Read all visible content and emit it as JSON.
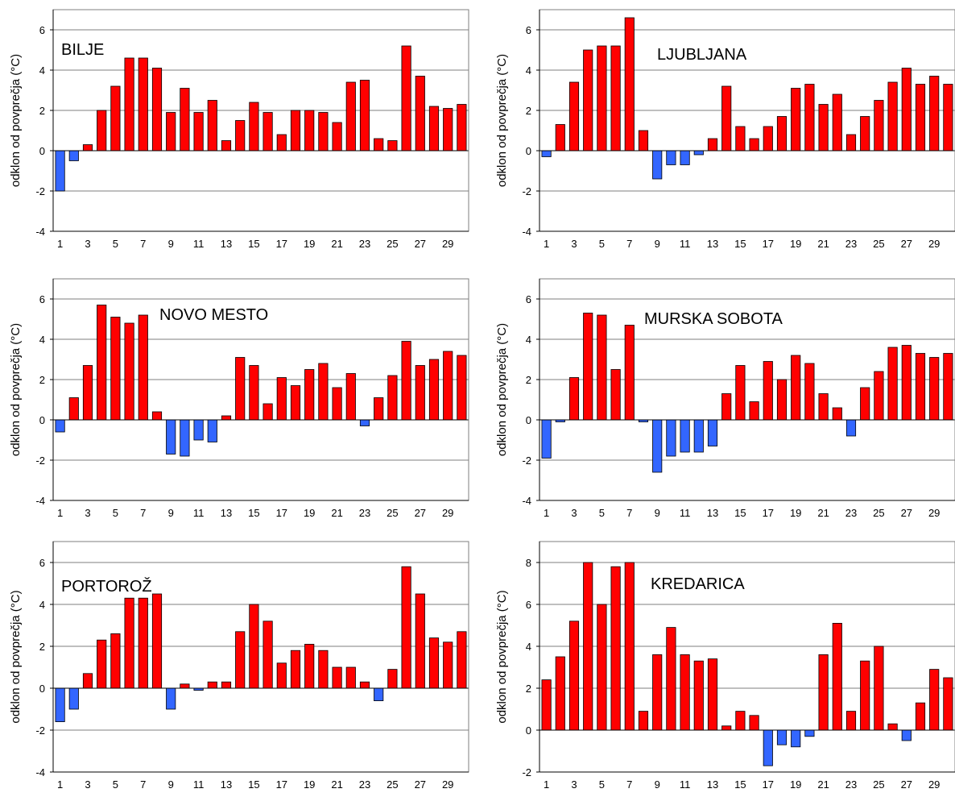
{
  "colors": {
    "positive": "#ff0000",
    "negative": "#3366ff",
    "outline": "#000000",
    "grid": "#7f7f7f",
    "background": "#ffffff"
  },
  "chart_data": [
    {
      "type": "bar",
      "title": "BILJE",
      "ylabel": "odklon od povprečja (°C)",
      "ylim": [
        -4,
        7
      ],
      "yticks": [
        -4,
        -2,
        0,
        2,
        4,
        6
      ],
      "x": [
        1,
        2,
        3,
        4,
        5,
        6,
        7,
        8,
        9,
        10,
        11,
        12,
        13,
        14,
        15,
        16,
        17,
        18,
        19,
        20,
        21,
        22,
        23,
        24,
        25,
        26,
        27,
        28,
        29,
        30
      ],
      "xtick_labels": [
        "1",
        "3",
        "5",
        "7",
        "9",
        "11",
        "13",
        "15",
        "17",
        "19",
        "21",
        "23",
        "25",
        "27",
        "29"
      ],
      "values": [
        -2.0,
        -0.5,
        0.3,
        2.0,
        3.2,
        4.6,
        4.6,
        4.1,
        1.9,
        3.1,
        1.9,
        2.5,
        0.5,
        1.5,
        2.4,
        1.9,
        0.8,
        2.0,
        2.0,
        1.9,
        1.4,
        3.4,
        3.5,
        0.6,
        0.5,
        5.2,
        3.7,
        2.2,
        2.1,
        2.3
      ],
      "grid": true
    },
    {
      "type": "bar",
      "title": "LJUBLJANA",
      "ylabel": "odklon od povprečja (°C)",
      "ylim": [
        -4,
        7
      ],
      "yticks": [
        -4,
        -2,
        0,
        2,
        4,
        6
      ],
      "x": [
        1,
        2,
        3,
        4,
        5,
        6,
        7,
        8,
        9,
        10,
        11,
        12,
        13,
        14,
        15,
        16,
        17,
        18,
        19,
        20,
        21,
        22,
        23,
        24,
        25,
        26,
        27,
        28,
        29,
        30
      ],
      "xtick_labels": [
        "1",
        "3",
        "5",
        "7",
        "9",
        "11",
        "13",
        "15",
        "17",
        "19",
        "21",
        "23",
        "25",
        "27",
        "29"
      ],
      "values": [
        -0.3,
        1.3,
        3.4,
        5.0,
        5.2,
        5.2,
        6.6,
        1.0,
        -1.4,
        -0.7,
        -0.7,
        -0.2,
        0.6,
        3.2,
        1.2,
        0.6,
        1.2,
        1.7,
        3.1,
        3.3,
        2.3,
        2.8,
        0.8,
        1.7,
        2.5,
        3.4,
        4.1,
        3.3,
        3.7,
        3.3
      ],
      "grid": true
    },
    {
      "type": "bar",
      "title": "NOVO MESTO",
      "ylabel": "odklon od povprečja (°C)",
      "ylim": [
        -4,
        7
      ],
      "yticks": [
        -4,
        -2,
        0,
        2,
        4,
        6
      ],
      "x": [
        1,
        2,
        3,
        4,
        5,
        6,
        7,
        8,
        9,
        10,
        11,
        12,
        13,
        14,
        15,
        16,
        17,
        18,
        19,
        20,
        21,
        22,
        23,
        24,
        25,
        26,
        27,
        28,
        29,
        30
      ],
      "xtick_labels": [
        "1",
        "3",
        "5",
        "7",
        "9",
        "11",
        "13",
        "15",
        "17",
        "19",
        "21",
        "23",
        "25",
        "27",
        "29"
      ],
      "values": [
        -0.6,
        1.1,
        2.7,
        5.7,
        5.1,
        4.8,
        5.2,
        0.4,
        -1.7,
        -1.8,
        -1.0,
        -1.1,
        0.2,
        3.1,
        2.7,
        0.8,
        2.1,
        1.7,
        2.5,
        2.8,
        1.6,
        2.3,
        -0.3,
        1.1,
        2.2,
        3.9,
        2.7,
        3.0,
        3.4,
        3.2
      ],
      "grid": true
    },
    {
      "type": "bar",
      "title": "MURSKA SOBOTA",
      "ylabel": "odklon od povprečja (°C)",
      "ylim": [
        -4,
        7
      ],
      "yticks": [
        -4,
        -2,
        0,
        2,
        4,
        6
      ],
      "x": [
        1,
        2,
        3,
        4,
        5,
        6,
        7,
        8,
        9,
        10,
        11,
        12,
        13,
        14,
        15,
        16,
        17,
        18,
        19,
        20,
        21,
        22,
        23,
        24,
        25,
        26,
        27,
        28,
        29,
        30
      ],
      "xtick_labels": [
        "1",
        "3",
        "5",
        "7",
        "9",
        "11",
        "13",
        "15",
        "17",
        "19",
        "21",
        "23",
        "25",
        "27",
        "29"
      ],
      "values": [
        -1.9,
        -0.1,
        2.1,
        5.3,
        5.2,
        2.5,
        4.7,
        -0.1,
        -2.6,
        -1.8,
        -1.6,
        -1.6,
        -1.3,
        1.3,
        2.7,
        0.9,
        2.9,
        2.0,
        3.2,
        2.8,
        1.3,
        0.6,
        -0.8,
        1.6,
        2.4,
        3.6,
        3.7,
        3.3,
        3.1,
        3.3
      ],
      "grid": true
    },
    {
      "type": "bar",
      "title": "PORTOROŽ",
      "ylabel": "odklon od povprečja (°C)",
      "ylim": [
        -4,
        7
      ],
      "yticks": [
        -4,
        -2,
        0,
        2,
        4,
        6
      ],
      "x": [
        1,
        2,
        3,
        4,
        5,
        6,
        7,
        8,
        9,
        10,
        11,
        12,
        13,
        14,
        15,
        16,
        17,
        18,
        19,
        20,
        21,
        22,
        23,
        24,
        25,
        26,
        27,
        28,
        29,
        30
      ],
      "xtick_labels": [
        "1",
        "3",
        "5",
        "7",
        "9",
        "11",
        "13",
        "15",
        "17",
        "19",
        "21",
        "23",
        "25",
        "27",
        "29"
      ],
      "values": [
        -1.6,
        -1.0,
        0.7,
        2.3,
        2.6,
        4.3,
        4.3,
        4.5,
        -1.0,
        0.2,
        -0.1,
        0.3,
        0.3,
        2.7,
        4.0,
        3.2,
        1.2,
        1.8,
        2.1,
        1.8,
        1.0,
        1.0,
        0.3,
        -0.6,
        0.9,
        5.8,
        4.5,
        2.4,
        2.2,
        2.7
      ],
      "grid": true
    },
    {
      "type": "bar",
      "title": "KREDARICA",
      "ylabel": "odklon od povprečja (°C)",
      "ylim": [
        -2,
        9
      ],
      "yticks": [
        -2,
        0,
        2,
        4,
        6,
        8
      ],
      "x": [
        1,
        2,
        3,
        4,
        5,
        6,
        7,
        8,
        9,
        10,
        11,
        12,
        13,
        14,
        15,
        16,
        17,
        18,
        19,
        20,
        21,
        22,
        23,
        24,
        25,
        26,
        27,
        28,
        29,
        30
      ],
      "xtick_labels": [
        "1",
        "3",
        "5",
        "7",
        "9",
        "11",
        "13",
        "15",
        "17",
        "19",
        "21",
        "23",
        "25",
        "27",
        "29"
      ],
      "values": [
        2.4,
        3.5,
        5.2,
        8.0,
        6.0,
        7.8,
        8.0,
        0.9,
        3.6,
        4.9,
        3.6,
        3.3,
        3.4,
        0.2,
        0.9,
        0.7,
        -1.7,
        -0.7,
        -0.8,
        -0.3,
        3.6,
        5.1,
        0.9,
        3.3,
        4.0,
        0.3,
        -0.5,
        1.3,
        2.9,
        2.5
      ],
      "grid": true
    }
  ]
}
